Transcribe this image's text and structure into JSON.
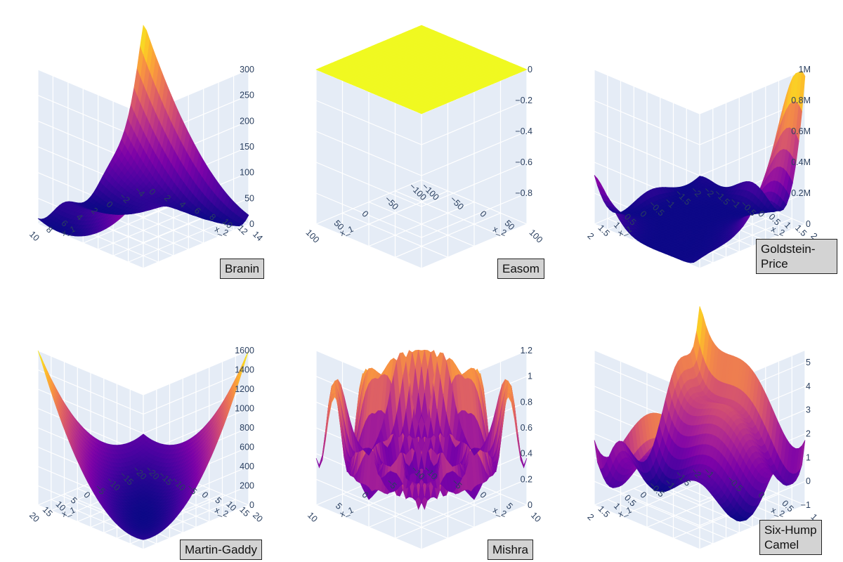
{
  "figure": {
    "colorscale": "plasma",
    "grid": true
  },
  "chart_data": [
    {
      "type": "surface",
      "title": "Branin",
      "x_label": "x_1",
      "y_label": "x_2",
      "z_label": "",
      "x_range": [
        -5,
        10
      ],
      "y_range": [
        0,
        15
      ],
      "z_range": [
        0,
        300
      ],
      "x_ticks": [
        "−4",
        "−2",
        "0",
        "2",
        "4",
        "6",
        "8",
        "10"
      ],
      "y_ticks": [
        "0",
        "2",
        "4",
        "6",
        "8",
        "10",
        "12",
        "14"
      ],
      "z_ticks": [
        "0",
        "50",
        "100",
        "150",
        "200",
        "250",
        "300"
      ],
      "z_tick_values": [
        0,
        50,
        100,
        150,
        200,
        250,
        300
      ]
    },
    {
      "type": "surface",
      "title": "Easom",
      "x_label": "x_1",
      "y_label": "x_2",
      "z_label": "",
      "x_range": [
        -100,
        100
      ],
      "y_range": [
        -100,
        100
      ],
      "z_range": [
        -1,
        0
      ],
      "x_ticks": [
        "−100",
        "−50",
        "0",
        "50",
        "100"
      ],
      "y_ticks": [
        "−100",
        "−50",
        "0",
        "50",
        "100"
      ],
      "z_ticks": [
        "0",
        "−0.2",
        "−0.4",
        "−0.6",
        "−0.8"
      ],
      "z_tick_values": [
        0,
        -0.2,
        -0.4,
        -0.6,
        -0.8
      ]
    },
    {
      "type": "surface",
      "title": "Goldstein-Price",
      "x_label": "x_1",
      "y_label": "x_2",
      "z_label": "",
      "x_range": [
        -2,
        2
      ],
      "y_range": [
        -2,
        2
      ],
      "z_range": [
        0,
        1000000
      ],
      "x_ticks": [
        "−2",
        "−1.5",
        "−1",
        "−0.5",
        "0",
        "0.5",
        "1",
        "1.5",
        "2"
      ],
      "y_ticks": [
        "−2",
        "−1.5",
        "−1",
        "−0.5",
        "0",
        "0.5",
        "1",
        "1.5",
        "2"
      ],
      "z_ticks": [
        "0",
        "0.2M",
        "0.4M",
        "0.6M",
        "0.8M",
        "1M"
      ],
      "z_tick_values": [
        0,
        200000,
        400000,
        600000,
        800000,
        1000000
      ]
    },
    {
      "type": "surface",
      "title": "Martin-Gaddy",
      "x_label": "x_1",
      "y_label": "x_2",
      "z_label": "",
      "x_range": [
        -20,
        20
      ],
      "y_range": [
        -20,
        20
      ],
      "z_range": [
        0,
        1600
      ],
      "x_ticks": [
        "−20",
        "−15",
        "−10",
        "−5",
        "0",
        "5",
        "10",
        "15",
        "20"
      ],
      "y_ticks": [
        "−20",
        "−15",
        "−10",
        "−5",
        "0",
        "5",
        "10",
        "15",
        "20"
      ],
      "z_ticks": [
        "0",
        "200",
        "400",
        "600",
        "800",
        "1000",
        "1200",
        "1400",
        "1600"
      ],
      "z_tick_values": [
        0,
        200,
        400,
        600,
        800,
        1000,
        1200,
        1400,
        1600
      ]
    },
    {
      "type": "surface",
      "title": "Mishra",
      "x_label": "x_1",
      "y_label": "x_2",
      "z_label": "",
      "x_range": [
        -10,
        10
      ],
      "y_range": [
        -10,
        10
      ],
      "z_range": [
        0,
        1.2
      ],
      "x_ticks": [
        "−10",
        "−5",
        "0",
        "5",
        "10"
      ],
      "y_ticks": [
        "−10",
        "−5",
        "0",
        "5",
        "10"
      ],
      "z_ticks": [
        "0",
        "0.2",
        "0.4",
        "0.6",
        "0.8",
        "1",
        "1.2"
      ],
      "z_tick_values": [
        0,
        0.2,
        0.4,
        0.6,
        0.8,
        1,
        1.2
      ]
    },
    {
      "type": "surface",
      "title": "Six-Hump\nCamel",
      "x_label": "x_1",
      "y_label": "x_2",
      "z_label": "",
      "x_range": [
        -2,
        2
      ],
      "y_range": [
        -1,
        1
      ],
      "z_range": [
        -1,
        5.5
      ],
      "x_ticks": [
        "−2",
        "−1.5",
        "−1",
        "−0.5",
        "0",
        "0.5",
        "1",
        "1.5",
        "2"
      ],
      "y_ticks": [
        "−1",
        "−0.5",
        "0",
        "0.5",
        "1"
      ],
      "z_ticks": [
        "−1",
        "0",
        "1",
        "2",
        "3",
        "4",
        "5"
      ],
      "z_tick_values": [
        -1,
        0,
        1,
        2,
        3,
        4,
        5
      ]
    }
  ]
}
